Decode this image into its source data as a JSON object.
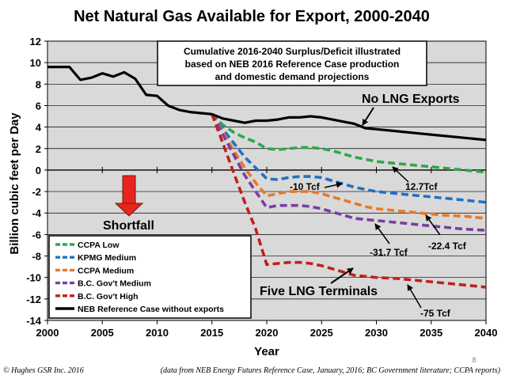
{
  "slide": {
    "copyright": "© Hughes GSR Inc. 2016",
    "source_note": "(data from NEB Energy Futures Reference Case, January, 2016; BC Government literature; CCPA reports)",
    "page_number": "8"
  },
  "chart_data": {
    "type": "line",
    "title": "Net Natural Gas Available for Export, 2000-2040",
    "xlabel": "Year",
    "ylabel": "Billion cubic feet per Day",
    "xlim": [
      2000,
      2040
    ],
    "ylim": [
      -14,
      12
    ],
    "xticks": [
      2000,
      2005,
      2010,
      2015,
      2020,
      2025,
      2030,
      2035,
      2040
    ],
    "yticks": [
      -14,
      -12,
      -10,
      -8,
      -6,
      -4,
      -2,
      0,
      2,
      4,
      6,
      8,
      10,
      12
    ],
    "grid": "horizontal",
    "legend_position": "bottom-left",
    "series": [
      {
        "name": "CCPA Low",
        "color": "#2ca84a",
        "style": "dashed",
        "x": [
          2015,
          2016,
          2017,
          2018,
          2019,
          2020,
          2021,
          2022,
          2023,
          2024,
          2025,
          2026,
          2027,
          2028,
          2029,
          2030,
          2032,
          2034,
          2036,
          2038,
          2040
        ],
        "y": [
          5.2,
          4.2,
          3.5,
          3.0,
          2.6,
          2.0,
          1.9,
          2.0,
          2.1,
          2.1,
          2.0,
          1.8,
          1.5,
          1.2,
          1.0,
          0.8,
          0.6,
          0.4,
          0.2,
          0.0,
          -0.2
        ]
      },
      {
        "name": "KPMG Medium",
        "color": "#2271c3",
        "style": "dashed",
        "x": [
          2015,
          2016,
          2017,
          2018,
          2019,
          2020,
          2021,
          2022,
          2023,
          2024,
          2025,
          2026,
          2027,
          2028,
          2029,
          2030,
          2032,
          2034,
          2036,
          2038,
          2040
        ],
        "y": [
          5.2,
          3.8,
          2.5,
          1.2,
          0.2,
          -0.8,
          -0.9,
          -0.7,
          -0.6,
          -0.6,
          -0.7,
          -1.0,
          -1.3,
          -1.6,
          -1.8,
          -2.0,
          -2.2,
          -2.4,
          -2.6,
          -2.8,
          -3.0
        ]
      },
      {
        "name": "CCPA Medium",
        "color": "#e8782a",
        "style": "dashed",
        "x": [
          2015,
          2016,
          2017,
          2018,
          2019,
          2020,
          2021,
          2022,
          2023,
          2024,
          2025,
          2026,
          2027,
          2028,
          2029,
          2030,
          2032,
          2034,
          2036,
          2038,
          2040
        ],
        "y": [
          5.2,
          3.5,
          1.8,
          0.2,
          -1.2,
          -2.4,
          -2.2,
          -2.0,
          -2.0,
          -2.0,
          -2.2,
          -2.5,
          -2.8,
          -3.1,
          -3.4,
          -3.6,
          -3.8,
          -4.0,
          -4.2,
          -4.3,
          -4.5
        ]
      },
      {
        "name": "B.C. Gov't Medium",
        "color": "#7a3fa0",
        "style": "dashed",
        "x": [
          2015,
          2016,
          2017,
          2018,
          2019,
          2020,
          2021,
          2022,
          2023,
          2024,
          2025,
          2026,
          2027,
          2028,
          2029,
          2030,
          2032,
          2034,
          2036,
          2038,
          2040
        ],
        "y": [
          5.2,
          3.3,
          1.4,
          -0.5,
          -2.0,
          -3.5,
          -3.3,
          -3.3,
          -3.3,
          -3.4,
          -3.6,
          -3.9,
          -4.2,
          -4.5,
          -4.6,
          -4.7,
          -4.9,
          -5.1,
          -5.3,
          -5.5,
          -5.6
        ]
      },
      {
        "name": "B.C. Gov't High",
        "color": "#c0201c",
        "style": "dashed",
        "x": [
          2015,
          2016,
          2017,
          2018,
          2019,
          2020,
          2021,
          2022,
          2023,
          2024,
          2025,
          2026,
          2027,
          2028,
          2029,
          2030,
          2032,
          2034,
          2036,
          2038,
          2040
        ],
        "y": [
          5.2,
          2.5,
          -0.3,
          -3.0,
          -5.5,
          -8.8,
          -8.7,
          -8.6,
          -8.6,
          -8.7,
          -8.9,
          -9.2,
          -9.5,
          -9.8,
          -9.9,
          -10.0,
          -10.1,
          -10.3,
          -10.5,
          -10.7,
          -10.9
        ]
      },
      {
        "name": "NEB Reference Case without exports",
        "color": "#000000",
        "style": "solid",
        "x": [
          2000,
          2001,
          2002,
          2003,
          2004,
          2005,
          2006,
          2007,
          2008,
          2009,
          2010,
          2011,
          2012,
          2013,
          2014,
          2015,
          2016,
          2017,
          2018,
          2019,
          2020,
          2021,
          2022,
          2023,
          2024,
          2025,
          2026,
          2027,
          2028,
          2029,
          2030,
          2032,
          2034,
          2036,
          2038,
          2040
        ],
        "y": [
          9.6,
          9.6,
          9.6,
          8.4,
          8.6,
          9.0,
          8.7,
          9.1,
          8.5,
          7.0,
          6.9,
          6.0,
          5.6,
          5.4,
          5.3,
          5.2,
          4.8,
          4.6,
          4.4,
          4.6,
          4.6,
          4.7,
          4.9,
          4.9,
          5.0,
          4.9,
          4.7,
          4.5,
          4.3,
          3.9,
          3.8,
          3.6,
          3.4,
          3.2,
          3.0,
          2.8
        ]
      }
    ],
    "annotations": {
      "info_box": [
        "Cumulative 2016-2040 Surplus/Deficit illustrated",
        "based on NEB 2016 Reference Case production",
        "and domestic demand projections"
      ],
      "no_lng": "No LNG Exports",
      "five_lng": "Five LNG Terminals",
      "shortfall": "Shortfall",
      "tcf_127": "12.7Tcf",
      "tcf_10": "-10 Tcf",
      "tcf_224": "-22.4 Tcf",
      "tcf_317": "-31.7 Tcf",
      "tcf_75": "-75 Tcf"
    }
  }
}
